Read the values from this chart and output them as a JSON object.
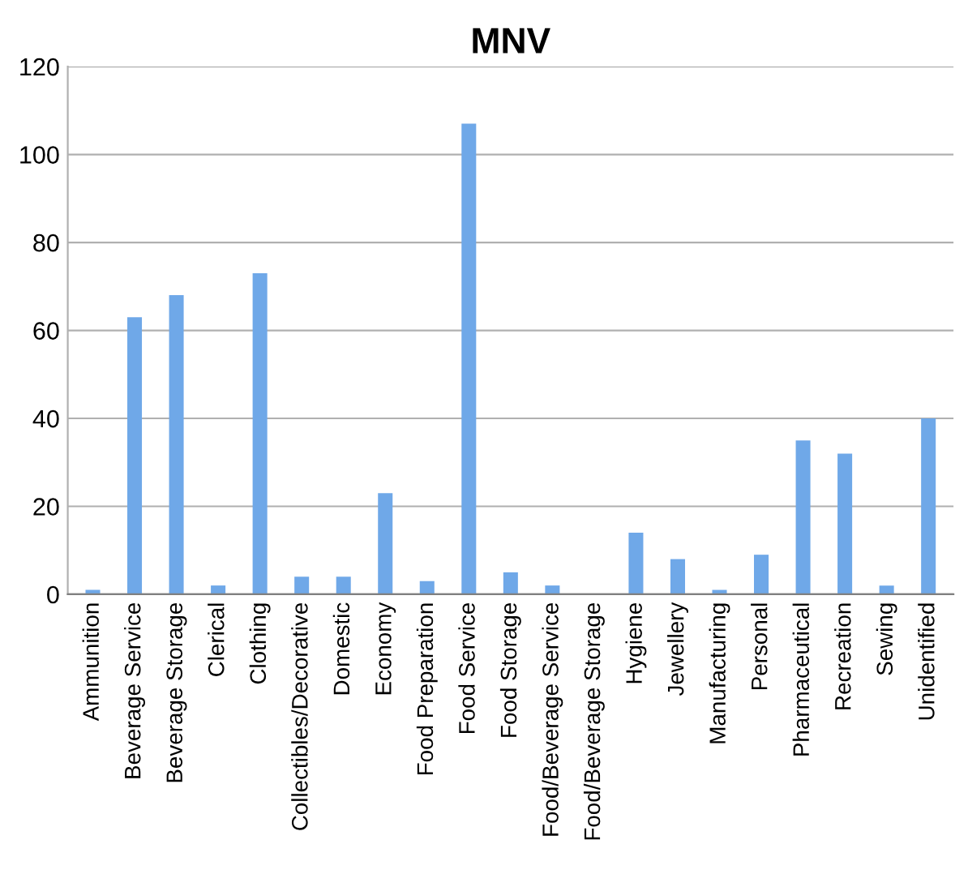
{
  "chart_data": {
    "type": "bar",
    "title": "MNV",
    "categories": [
      "Ammunition",
      "Beverage Service",
      "Beverage Storage",
      "Clerical",
      "Clothing",
      "Collectibles/Decorative",
      "Domestic",
      "Economy",
      "Food Preparation",
      "Food Service",
      "Food Storage",
      "Food/Beverage Service",
      "Food/Beverage Storage",
      "Hygiene",
      "Jewellery",
      "Manufacturing",
      "Personal",
      "Pharmaceutical",
      "Recreation",
      "Sewing",
      "Unidentified"
    ],
    "values": [
      1,
      63,
      68,
      2,
      73,
      4,
      4,
      23,
      3,
      107,
      5,
      2,
      0,
      14,
      8,
      1,
      9,
      35,
      32,
      2,
      40
    ],
    "color": "#6fa8e8",
    "ylim": [
      0,
      120
    ],
    "yticks": [
      0,
      20,
      40,
      60,
      80,
      100,
      120
    ],
    "grid": "y"
  }
}
